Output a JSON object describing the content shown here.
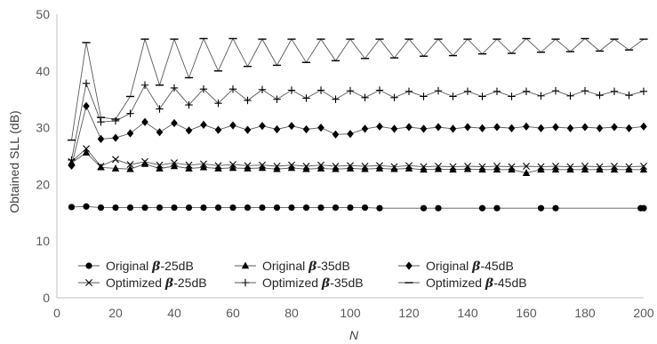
{
  "chart_data": {
    "type": "line",
    "title": "",
    "xlabel": "N",
    "ylabel": "Obtained SLL (dB)",
    "xlim": [
      0,
      200
    ],
    "ylim": [
      0,
      50
    ],
    "x_ticks": [
      "0",
      "20",
      "40",
      "60",
      "80",
      "100",
      "120",
      "140",
      "160",
      "180",
      "200"
    ],
    "y_ticks": [
      "0",
      "10",
      "20",
      "30",
      "40",
      "50"
    ],
    "grid": false,
    "legend_position": "bottom",
    "color": "#000000",
    "series": [
      {
        "name_prefix": "Original ",
        "name_beta": "β",
        "name_suffix": "-25dB",
        "marker": "circle",
        "x": [
          5,
          10,
          15,
          20,
          25,
          30,
          35,
          40,
          45,
          50,
          55,
          60,
          65,
          70,
          75,
          80,
          85,
          90,
          95,
          100,
          105,
          110,
          125,
          130,
          145,
          150,
          165,
          170,
          199,
          200
        ],
        "y": [
          16.0,
          16.1,
          15.9,
          15.9,
          15.9,
          15.9,
          15.9,
          15.9,
          15.9,
          15.9,
          15.9,
          15.9,
          15.9,
          15.9,
          15.9,
          15.9,
          15.9,
          15.9,
          15.9,
          15.9,
          15.9,
          15.8,
          15.8,
          15.8,
          15.8,
          15.8,
          15.8,
          15.8,
          15.8,
          15.8
        ]
      },
      {
        "name_prefix": "Original ",
        "name_beta": "β",
        "name_suffix": "-35dB",
        "marker": "triangle",
        "x": [
          5,
          10,
          15,
          20,
          25,
          30,
          35,
          40,
          45,
          50,
          55,
          60,
          65,
          70,
          75,
          80,
          85,
          90,
          95,
          100,
          105,
          110,
          115,
          120,
          125,
          130,
          135,
          140,
          145,
          150,
          155,
          160,
          165,
          170,
          175,
          180,
          185,
          190,
          195,
          200
        ],
        "y": [
          23.8,
          25.6,
          23.0,
          22.8,
          22.7,
          23.6,
          22.8,
          23.2,
          22.8,
          23.0,
          22.8,
          22.9,
          22.8,
          22.9,
          22.7,
          22.9,
          22.7,
          22.8,
          22.7,
          22.8,
          22.7,
          22.8,
          22.7,
          22.8,
          22.6,
          22.7,
          22.6,
          22.7,
          22.6,
          22.6,
          22.6,
          22.0,
          22.6,
          22.6,
          22.6,
          22.6,
          22.6,
          22.6,
          22.6,
          22.6
        ]
      },
      {
        "name_prefix": "Original ",
        "name_beta": "β",
        "name_suffix": "-45dB",
        "marker": "diamond",
        "x": [
          5,
          10,
          15,
          20,
          25,
          30,
          35,
          40,
          45,
          50,
          55,
          60,
          65,
          70,
          75,
          80,
          85,
          90,
          95,
          100,
          105,
          110,
          115,
          120,
          125,
          130,
          135,
          140,
          145,
          150,
          155,
          160,
          165,
          170,
          175,
          180,
          185,
          190,
          195,
          200
        ],
        "y": [
          23.3,
          33.8,
          28.0,
          28.2,
          29.0,
          31.0,
          29.2,
          30.8,
          29.5,
          30.5,
          29.6,
          30.4,
          29.6,
          30.3,
          29.7,
          30.3,
          29.7,
          30.0,
          28.8,
          28.9,
          29.8,
          30.2,
          29.8,
          30.1,
          29.8,
          30.1,
          29.8,
          30.1,
          29.9,
          30.1,
          29.9,
          30.2,
          29.9,
          30.1,
          29.9,
          30.1,
          29.9,
          30.1,
          29.9,
          30.2
        ]
      },
      {
        "name_prefix": "Optimized ",
        "name_beta": "β",
        "name_suffix": "-25dB",
        "marker": "x",
        "x": [
          5,
          10,
          15,
          20,
          25,
          30,
          35,
          40,
          45,
          50,
          55,
          60,
          65,
          70,
          75,
          80,
          85,
          90,
          95,
          100,
          105,
          110,
          115,
          120,
          125,
          130,
          135,
          140,
          145,
          150,
          155,
          160,
          165,
          170,
          175,
          180,
          185,
          190,
          195,
          200
        ],
        "y": [
          24.0,
          26.3,
          23.2,
          24.4,
          23.5,
          24.0,
          23.4,
          23.8,
          23.4,
          23.6,
          23.3,
          23.5,
          23.3,
          23.4,
          23.2,
          23.4,
          23.2,
          23.4,
          23.2,
          23.3,
          23.2,
          23.3,
          23.1,
          23.3,
          23.1,
          23.2,
          23.1,
          23.2,
          23.1,
          23.2,
          23.1,
          23.2,
          23.1,
          23.2,
          23.1,
          23.2,
          23.1,
          23.2,
          23.1,
          23.2
        ]
      },
      {
        "name_prefix": "Optimized ",
        "name_beta": "β",
        "name_suffix": "-35dB",
        "marker": "plus",
        "x": [
          5,
          10,
          15,
          20,
          25,
          30,
          35,
          40,
          45,
          50,
          55,
          60,
          65,
          70,
          75,
          80,
          85,
          90,
          95,
          100,
          105,
          110,
          115,
          120,
          125,
          130,
          135,
          140,
          145,
          150,
          155,
          160,
          165,
          170,
          175,
          180,
          185,
          190,
          195,
          200
        ],
        "y": [
          24.3,
          37.8,
          31.0,
          31.2,
          32.5,
          37.5,
          33.3,
          37.0,
          34.0,
          36.8,
          34.3,
          36.8,
          34.8,
          36.7,
          35.0,
          36.6,
          35.2,
          36.6,
          35.0,
          36.5,
          35.3,
          36.6,
          35.3,
          36.4,
          35.5,
          36.5,
          35.5,
          36.4,
          35.5,
          36.4,
          35.5,
          36.4,
          35.6,
          36.5,
          35.6,
          36.5,
          35.7,
          36.4,
          35.7,
          36.4
        ]
      },
      {
        "name_prefix": "Optimized ",
        "name_beta": "β",
        "name_suffix": "-45dB",
        "marker": "dash",
        "x": [
          5,
          10,
          15,
          20,
          25,
          30,
          35,
          40,
          45,
          50,
          55,
          60,
          65,
          70,
          75,
          80,
          85,
          90,
          95,
          100,
          105,
          110,
          115,
          120,
          125,
          130,
          135,
          140,
          145,
          150,
          155,
          160,
          165,
          170,
          175,
          180,
          185,
          190,
          195,
          200
        ],
        "y": [
          27.8,
          45.0,
          31.8,
          31.5,
          35.5,
          45.6,
          37.5,
          45.6,
          38.8,
          45.7,
          40.0,
          45.7,
          40.8,
          45.6,
          41.0,
          45.6,
          41.5,
          45.6,
          41.8,
          45.6,
          42.2,
          45.6,
          42.3,
          45.6,
          42.6,
          45.6,
          42.7,
          45.6,
          43.0,
          45.6,
          43.1,
          45.7,
          43.3,
          45.6,
          43.4,
          45.7,
          43.5,
          45.6,
          43.7,
          45.6
        ]
      }
    ]
  }
}
